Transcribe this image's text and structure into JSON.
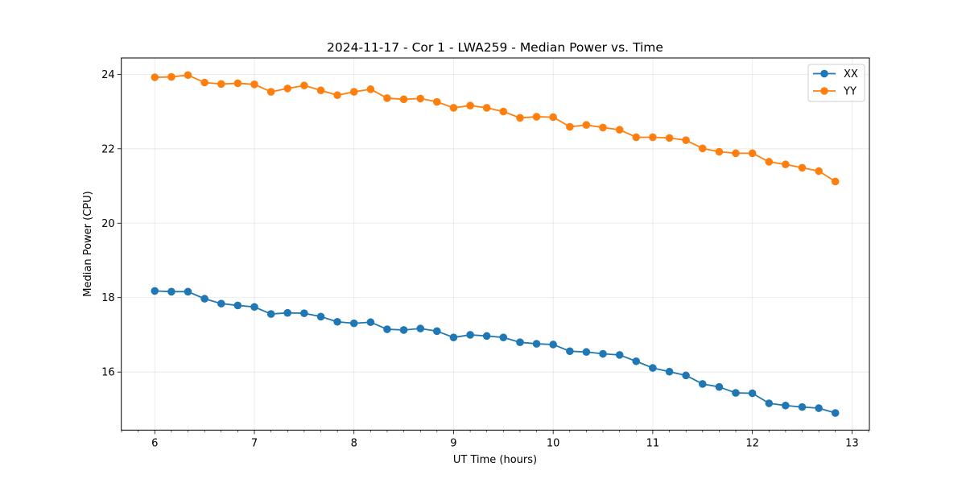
{
  "chart_data": {
    "type": "line",
    "title": "2024-11-17 - Cor 1 - LWA259 - Median Power vs. Time",
    "xlabel": "UT Time (hours)",
    "ylabel": "Median Power (CPU)",
    "xlim": [
      5.664,
      13.175
    ],
    "ylim": [
      14.44,
      24.44
    ],
    "xticks": [
      6,
      7,
      8,
      9,
      10,
      11,
      12,
      13
    ],
    "xtick_labels": [
      "6",
      "7",
      "8",
      "9",
      "10",
      "11",
      "12",
      "13"
    ],
    "x_minor_step": 0.16667,
    "yticks": [
      16,
      18,
      20,
      22,
      24
    ],
    "ytick_labels": [
      "16",
      "18",
      "20",
      "22",
      "24"
    ],
    "grid": true,
    "legend_position": "top-right",
    "x": [
      6.0,
      6.167,
      6.333,
      6.5,
      6.667,
      6.833,
      7.0,
      7.167,
      7.333,
      7.5,
      7.667,
      7.833,
      8.0,
      8.167,
      8.333,
      8.5,
      8.667,
      8.833,
      9.0,
      9.167,
      9.333,
      9.5,
      9.667,
      9.833,
      10.0,
      10.167,
      10.333,
      10.5,
      10.667,
      10.833,
      11.0,
      11.167,
      11.333,
      11.5,
      11.667,
      11.833,
      12.0,
      12.167,
      12.333,
      12.5,
      12.667,
      12.833
    ],
    "series": [
      {
        "name": "XX",
        "color": "#1f77b4",
        "marker": "circle",
        "values": [
          18.18,
          18.16,
          18.16,
          17.97,
          17.84,
          17.79,
          17.75,
          17.56,
          17.59,
          17.58,
          17.49,
          17.35,
          17.31,
          17.34,
          17.15,
          17.13,
          17.17,
          17.1,
          16.93,
          17.0,
          16.97,
          16.93,
          16.8,
          16.76,
          16.74,
          16.56,
          16.54,
          16.49,
          16.46,
          16.29,
          16.11,
          16.01,
          15.91,
          15.68,
          15.6,
          15.44,
          15.43,
          15.16,
          15.1,
          15.06,
          15.03,
          14.9
        ]
      },
      {
        "name": "YY",
        "color": "#ff7f0e",
        "marker": "circle",
        "values": [
          23.92,
          23.93,
          23.98,
          23.78,
          23.74,
          23.76,
          23.73,
          23.53,
          23.62,
          23.7,
          23.57,
          23.44,
          23.53,
          23.6,
          23.36,
          23.33,
          23.35,
          23.26,
          23.1,
          23.16,
          23.1,
          23.0,
          22.83,
          22.86,
          22.85,
          22.59,
          22.64,
          22.57,
          22.51,
          22.31,
          22.31,
          22.29,
          22.23,
          22.01,
          21.92,
          21.88,
          21.88,
          21.65,
          21.58,
          21.49,
          21.4,
          21.12
        ]
      }
    ]
  }
}
